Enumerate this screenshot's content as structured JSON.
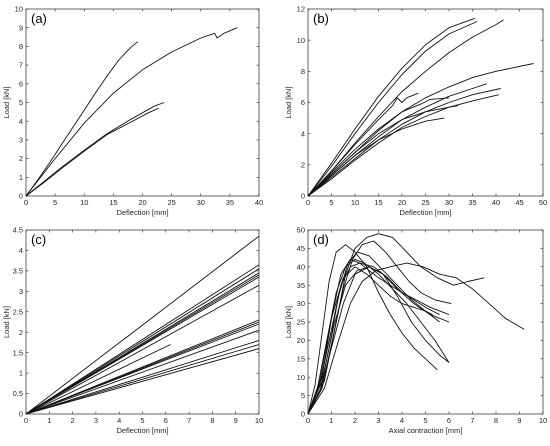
{
  "chart_data": [
    {
      "panel_label": "(a)",
      "type": "line",
      "xlabel": "Deflection [mm]",
      "ylabel": "Load [kN]",
      "xlim": [
        0,
        40
      ],
      "ylim": [
        0,
        10
      ],
      "xticks": [
        "0",
        "5",
        "10",
        "15",
        "20",
        "25",
        "30",
        "35",
        "40"
      ],
      "yticks": [
        "0",
        "1",
        "2",
        "3",
        "4",
        "5",
        "6",
        "7",
        "8",
        "9",
        "10"
      ],
      "grid": false,
      "series": [
        {
          "x": [
            0,
            2,
            4,
            6,
            8,
            10,
            12,
            14,
            16,
            18,
            19.2
          ],
          "y": [
            0,
            0.85,
            1.75,
            2.7,
            3.65,
            4.6,
            5.55,
            6.45,
            7.3,
            7.95,
            8.25
          ]
        },
        {
          "x": [
            0,
            2,
            5,
            10,
            15,
            20,
            25,
            30,
            32.4,
            32.8,
            34,
            36.3
          ],
          "y": [
            0,
            0.8,
            2.0,
            3.9,
            5.5,
            6.75,
            7.7,
            8.45,
            8.7,
            8.45,
            8.7,
            9.0
          ]
        },
        {
          "x": [
            0,
            3,
            6,
            10,
            14,
            18,
            22,
            23.7
          ],
          "y": [
            0,
            0.75,
            1.5,
            2.45,
            3.35,
            4.1,
            4.8,
            5.0
          ]
        },
        {
          "x": [
            0,
            3,
            6,
            10,
            14,
            18,
            21,
            22.8
          ],
          "y": [
            0,
            0.7,
            1.45,
            2.4,
            3.3,
            3.95,
            4.45,
            4.7
          ]
        }
      ]
    },
    {
      "panel_label": "(b)",
      "type": "line",
      "xlabel": "Deflection [mm]",
      "ylabel": "Load [kN]",
      "xlim": [
        0,
        50
      ],
      "ylim": [
        0,
        12
      ],
      "xticks": [
        "0",
        "5",
        "10",
        "15",
        "20",
        "25",
        "30",
        "35",
        "40",
        "45",
        "50"
      ],
      "yticks": [
        "0",
        "2",
        "4",
        "6",
        "8",
        "10",
        "12"
      ],
      "grid": false,
      "series": [
        {
          "x": [
            0,
            5,
            10,
            15,
            20,
            25,
            30,
            35.5
          ],
          "y": [
            0,
            2.1,
            4.3,
            6.4,
            8.2,
            9.7,
            10.8,
            11.4
          ]
        },
        {
          "x": [
            0,
            5,
            10,
            15,
            20,
            25,
            30,
            36
          ],
          "y": [
            0,
            1.9,
            4.0,
            6.0,
            7.8,
            9.3,
            10.4,
            11.2
          ]
        },
        {
          "x": [
            0,
            5,
            10,
            15,
            20,
            25,
            30,
            35,
            40,
            41.6
          ],
          "y": [
            0,
            1.6,
            3.4,
            5.1,
            6.7,
            8.0,
            9.2,
            10.2,
            11.0,
            11.3
          ]
        },
        {
          "x": [
            0,
            5,
            10,
            15,
            20,
            25,
            30,
            35,
            40,
            48
          ],
          "y": [
            0,
            1.4,
            2.8,
            4.2,
            5.4,
            6.3,
            7.0,
            7.6,
            8.0,
            8.5
          ]
        },
        {
          "x": [
            0,
            5,
            10,
            15,
            20,
            25,
            30,
            35,
            38
          ],
          "y": [
            0,
            1.3,
            2.6,
            3.8,
            4.9,
            5.7,
            6.4,
            6.9,
            7.2
          ]
        },
        {
          "x": [
            0,
            5,
            10,
            15,
            20,
            25,
            30,
            35,
            41
          ],
          "y": [
            0,
            1.2,
            2.4,
            3.6,
            4.6,
            5.4,
            6.0,
            6.5,
            6.9
          ]
        },
        {
          "x": [
            0,
            5,
            10,
            15,
            20,
            25,
            30,
            35,
            40.6
          ],
          "y": [
            0,
            1.1,
            2.3,
            3.4,
            4.4,
            5.1,
            5.7,
            6.1,
            6.5
          ]
        },
        {
          "x": [
            0,
            5,
            10,
            15,
            18,
            19,
            20,
            21,
            23.5
          ],
          "y": [
            0,
            1.6,
            3.3,
            4.9,
            5.8,
            6.3,
            6.0,
            6.3,
            6.6
          ]
        },
        {
          "x": [
            0,
            5,
            10,
            15,
            20,
            24,
            26,
            30
          ],
          "y": [
            0,
            1.5,
            3.0,
            4.3,
            5.4,
            5.9,
            6.2,
            6.3
          ]
        },
        {
          "x": [
            0,
            5,
            10,
            15,
            20,
            25,
            29
          ],
          "y": [
            0,
            1.3,
            2.6,
            3.6,
            4.3,
            4.8,
            5.0
          ]
        },
        {
          "x": [
            0,
            5,
            10,
            15,
            20,
            25,
            30,
            32
          ],
          "y": [
            0,
            1.4,
            2.8,
            4.0,
            4.9,
            5.4,
            5.7,
            5.8
          ]
        }
      ]
    },
    {
      "panel_label": "(c)",
      "type": "line",
      "xlabel": "Deflection [mm]",
      "ylabel": "Load [kN]",
      "xlim": [
        0,
        10
      ],
      "ylim": [
        0,
        4.5
      ],
      "xticks": [
        "0",
        "1",
        "2",
        "3",
        "4",
        "5",
        "6",
        "7",
        "8",
        "9",
        "10"
      ],
      "yticks": [
        "0",
        "0.5",
        "1",
        "1.5",
        "2",
        "2.5",
        "3",
        "3.5",
        "4",
        "4.5"
      ],
      "grid": false,
      "series": [
        {
          "x": [
            0,
            10
          ],
          "y": [
            0,
            4.35
          ]
        },
        {
          "x": [
            0,
            10
          ],
          "y": [
            0,
            3.65
          ]
        },
        {
          "x": [
            0,
            10
          ],
          "y": [
            0,
            3.55
          ]
        },
        {
          "x": [
            0,
            10
          ],
          "y": [
            0,
            3.45
          ]
        },
        {
          "x": [
            0,
            10
          ],
          "y": [
            0,
            3.4
          ]
        },
        {
          "x": [
            0,
            10
          ],
          "y": [
            0,
            3.35
          ]
        },
        {
          "x": [
            0,
            10
          ],
          "y": [
            0,
            3.15
          ]
        },
        {
          "x": [
            0,
            10
          ],
          "y": [
            0,
            2.3
          ]
        },
        {
          "x": [
            0,
            10
          ],
          "y": [
            0,
            2.25
          ]
        },
        {
          "x": [
            0,
            10
          ],
          "y": [
            0,
            2.2
          ]
        },
        {
          "x": [
            0,
            10
          ],
          "y": [
            0,
            2.05
          ]
        },
        {
          "x": [
            0,
            10
          ],
          "y": [
            0,
            1.8
          ]
        },
        {
          "x": [
            0,
            10
          ],
          "y": [
            0,
            1.7
          ]
        },
        {
          "x": [
            0,
            10
          ],
          "y": [
            0,
            1.6
          ]
        },
        {
          "x": [
            0,
            6.2
          ],
          "y": [
            0,
            1.7
          ]
        }
      ]
    },
    {
      "panel_label": "(d)",
      "type": "line",
      "xlabel": "Axial contraction [mm]",
      "ylabel": "Load [kN]",
      "xlim": [
        0,
        10
      ],
      "ylim": [
        0,
        50
      ],
      "xticks": [
        "0",
        "1",
        "2",
        "3",
        "4",
        "5",
        "6",
        "7",
        "8",
        "9",
        "10"
      ],
      "yticks": [
        "0",
        "5",
        "10",
        "15",
        "20",
        "25",
        "30",
        "35",
        "40",
        "45",
        "50"
      ],
      "grid": false,
      "series": [
        {
          "x": [
            0,
            0.3,
            0.6,
            0.9,
            1.2,
            1.6,
            2.0,
            2.5,
            3.0,
            3.5,
            4.0,
            4.5,
            5.0,
            5.5
          ],
          "y": [
            0,
            8,
            22,
            36,
            44,
            46,
            44,
            40,
            33,
            27,
            22,
            18,
            15,
            12
          ]
        },
        {
          "x": [
            0,
            0.4,
            0.8,
            1.2,
            1.6,
            2.0,
            2.4,
            3.0,
            3.6,
            4.2,
            4.8,
            5.4,
            6.0
          ],
          "y": [
            0,
            7,
            20,
            33,
            40,
            42,
            41,
            38,
            34,
            30,
            25,
            20,
            14
          ]
        },
        {
          "x": [
            0,
            0.5,
            0.9,
            1.3,
            1.7,
            2.1,
            2.6,
            3.2,
            3.8,
            4.4,
            5.0,
            5.6
          ],
          "y": [
            0,
            6,
            18,
            32,
            41,
            44,
            43,
            39,
            35,
            31,
            28,
            25
          ]
        },
        {
          "x": [
            0,
            0.5,
            1.0,
            1.4,
            1.8,
            2.2,
            2.8,
            3.4,
            4.0,
            4.6,
            5.2,
            6.0
          ],
          "y": [
            0,
            8,
            23,
            35,
            40,
            41,
            40,
            37,
            33,
            31,
            29,
            27
          ]
        },
        {
          "x": [
            0,
            0.6,
            1.1,
            1.5,
            1.9,
            2.3,
            2.8,
            3.3,
            3.8,
            4.3,
            4.8,
            5.4,
            6.1
          ],
          "y": [
            0,
            7,
            22,
            34,
            42,
            46,
            47,
            44,
            40,
            36,
            33,
            31,
            30
          ]
        },
        {
          "x": [
            0,
            0.7,
            1.2,
            1.6,
            2.0,
            2.5,
            3.0,
            3.6,
            4.2,
            4.8,
            5.5,
            6.2,
            6.8,
            7.5
          ],
          "y": [
            0,
            9,
            25,
            38,
            45,
            48,
            49,
            48,
            44,
            40,
            37,
            35,
            36,
            37
          ]
        },
        {
          "x": [
            0,
            0.7,
            1.3,
            1.8,
            2.3,
            2.9,
            3.5,
            4.2,
            4.9,
            5.6,
            6.3,
            7.0,
            7.7,
            8.4,
            9.2
          ],
          "y": [
            0,
            7,
            20,
            30,
            36,
            39,
            40,
            41,
            40,
            38,
            37,
            34,
            30,
            26,
            23
          ]
        },
        {
          "x": [
            0,
            0.6,
            1.0,
            1.4,
            1.8,
            2.2,
            2.6,
            3.0,
            3.5,
            4.0,
            4.5,
            5.0,
            5.6
          ],
          "y": [
            0,
            10,
            26,
            38,
            42,
            41,
            39,
            37,
            35,
            33,
            31,
            29,
            27
          ]
        },
        {
          "x": [
            0,
            0.6,
            1.1,
            1.6,
            2.1,
            2.6,
            3.2,
            3.8,
            4.5,
            5.2,
            6.0
          ],
          "y": [
            0,
            9,
            24,
            35,
            39,
            40,
            38,
            34,
            30,
            27,
            25
          ]
        },
        {
          "x": [
            0,
            0.5,
            1.0,
            1.5,
            2.0,
            2.5,
            3.0,
            3.5,
            4.0,
            4.5,
            5.0,
            5.3
          ],
          "y": [
            0,
            9,
            26,
            37,
            40,
            38,
            35,
            32,
            30,
            29,
            28,
            27
          ]
        },
        {
          "x": [
            0,
            0.5,
            1.0,
            1.5,
            2.0,
            2.6,
            3.2,
            3.8,
            4.4,
            5.0,
            5.6,
            6.0
          ],
          "y": [
            0,
            6,
            18,
            30,
            38,
            40,
            38,
            32,
            25,
            20,
            16,
            14
          ]
        }
      ]
    }
  ]
}
